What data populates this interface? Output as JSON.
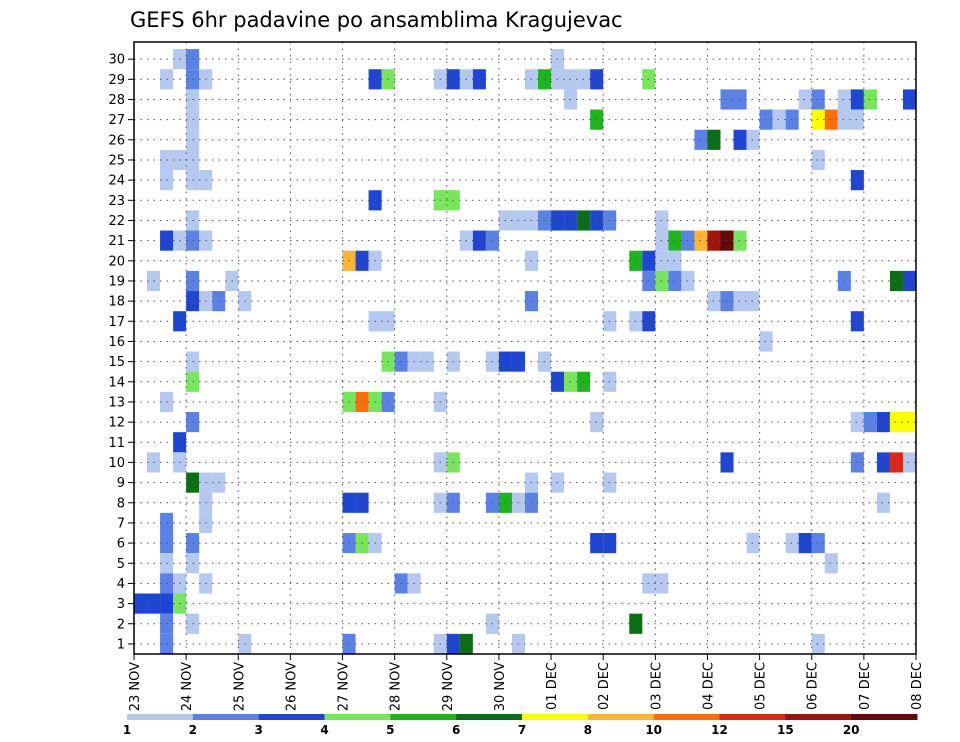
{
  "chart_data": {
    "type": "heatmap",
    "title": "GEFS 6hr padavine po ansamblima Kragujevac",
    "y_ticks": [
      "1",
      "2",
      "3",
      "4",
      "5",
      "6",
      "7",
      "8",
      "9",
      "10",
      "11",
      "12",
      "13",
      "14",
      "15",
      "16",
      "17",
      "18",
      "19",
      "20",
      "21",
      "22",
      "23",
      "24",
      "25",
      "26",
      "27",
      "28",
      "29",
      "30"
    ],
    "x_ticks": [
      "23 NOV",
      "24 NOV",
      "25 NOV",
      "26 NOV",
      "27 NOV",
      "28 NOV",
      "29 NOV",
      "30 NOV",
      "01 DEC",
      "02 DEC",
      "03 DEC",
      "04 DEC",
      "05 DEC",
      "06 DEC",
      "07 DEC",
      "08 DEC"
    ],
    "x_grid": "dotted",
    "y_grid": "dotted",
    "legend": {
      "position": "bottom",
      "colors": [
        "#b4c8f0",
        "#5a82e6",
        "#1e46d2",
        "#78e65a",
        "#1eb41e",
        "#0a6e14",
        "#ffff00",
        "#ffb432",
        "#ff6e0a",
        "#dc2814",
        "#a0140a",
        "#640a0a"
      ],
      "labels": [
        "1",
        "2",
        "3",
        "4",
        "5",
        "6",
        "7",
        "8",
        "10",
        "12",
        "15",
        "20"
      ]
    },
    "cells": [
      [
        "23 NOV 18Z",
        30,
        1
      ],
      [
        "24 NOV 00Z",
        30,
        2
      ],
      [
        "23 NOV 12Z",
        29,
        1
      ],
      [
        "24 NOV 00Z",
        29,
        2
      ],
      [
        "24 NOV 06Z",
        29,
        1
      ],
      [
        "27 NOV 12Z",
        29,
        3
      ],
      [
        "27 NOV 18Z",
        29,
        4
      ],
      [
        "28 NOV 18Z",
        29,
        1
      ],
      [
        "29 NOV 00Z",
        29,
        3
      ],
      [
        "29 NOV 06Z",
        29,
        1
      ],
      [
        "29 NOV 12Z",
        29,
        3
      ],
      [
        "30 NOV 12Z",
        29,
        1
      ],
      [
        "30 NOV 18Z",
        29,
        5
      ],
      [
        "01 DEC 00Z",
        29,
        1
      ],
      [
        "01 DEC 06Z",
        29,
        1
      ],
      [
        "01 DEC 12Z",
        29,
        1
      ],
      [
        "01 DEC 18Z",
        29,
        3
      ],
      [
        "02 DEC 18Z",
        29,
        4
      ],
      [
        "01 DEC 00Z",
        30,
        1
      ],
      [
        "24 NOV 00Z",
        28,
        1
      ],
      [
        "01 DEC 06Z",
        28,
        1
      ],
      [
        "04 DEC 06Z",
        28,
        2
      ],
      [
        "04 DEC 12Z",
        28,
        2
      ],
      [
        "05 DEC 18Z",
        28,
        1
      ],
      [
        "06 DEC 00Z",
        28,
        2
      ],
      [
        "06 DEC 12Z",
        28,
        1
      ],
      [
        "06 DEC 18Z",
        28,
        3
      ],
      [
        "07 DEC 00Z",
        28,
        4
      ],
      [
        "07 DEC 18Z",
        28,
        3
      ],
      [
        "24 NOV 00Z",
        27,
        1
      ],
      [
        "01 DEC 18Z",
        27,
        5
      ],
      [
        "05 DEC 00Z",
        27,
        2
      ],
      [
        "05 DEC 06Z",
        27,
        1
      ],
      [
        "05 DEC 12Z",
        27,
        2
      ],
      [
        "06 DEC 00Z",
        27,
        7
      ],
      [
        "06 DEC 06Z",
        27,
        9
      ],
      [
        "06 DEC 12Z",
        27,
        1
      ],
      [
        "06 DEC 18Z",
        27,
        1
      ],
      [
        "24 NOV 00Z",
        26,
        1
      ],
      [
        "03 DEC 18Z",
        26,
        2
      ],
      [
        "04 DEC 00Z",
        26,
        6
      ],
      [
        "04 DEC 12Z",
        26,
        3
      ],
      [
        "04 DEC 18Z",
        26,
        1
      ],
      [
        "23 NOV 12Z",
        25,
        1
      ],
      [
        "23 NOV 18Z",
        25,
        1
      ],
      [
        "24 NOV 00Z",
        25,
        1
      ],
      [
        "06 DEC 00Z",
        25,
        1
      ],
      [
        "23 NOV 12Z",
        24,
        1
      ],
      [
        "24 NOV 00Z",
        24,
        1
      ],
      [
        "24 NOV 06Z",
        24,
        1
      ],
      [
        "06 DEC 18Z",
        24,
        3
      ],
      [
        "27 NOV 12Z",
        23,
        3
      ],
      [
        "28 NOV 18Z",
        23,
        4
      ],
      [
        "29 NOV 00Z",
        23,
        4
      ],
      [
        "24 NOV 00Z",
        22,
        1
      ],
      [
        "30 NOV 00Z",
        22,
        1
      ],
      [
        "30 NOV 06Z",
        22,
        1
      ],
      [
        "30 NOV 12Z",
        22,
        1
      ],
      [
        "30 NOV 18Z",
        22,
        2
      ],
      [
        "01 DEC 00Z",
        22,
        3
      ],
      [
        "01 DEC 06Z",
        22,
        3
      ],
      [
        "01 DEC 12Z",
        22,
        6
      ],
      [
        "01 DEC 18Z",
        22,
        3
      ],
      [
        "02 DEC 00Z",
        22,
        2
      ],
      [
        "03 DEC 00Z",
        22,
        1
      ],
      [
        "23 NOV 12Z",
        21,
        3
      ],
      [
        "23 NOV 18Z",
        21,
        1
      ],
      [
        "24 NOV 00Z",
        21,
        2
      ],
      [
        "24 NOV 06Z",
        21,
        1
      ],
      [
        "29 NOV 06Z",
        21,
        1
      ],
      [
        "29 NOV 12Z",
        21,
        3
      ],
      [
        "29 NOV 18Z",
        21,
        2
      ],
      [
        "03 DEC 00Z",
        21,
        1
      ],
      [
        "03 DEC 06Z",
        21,
        5
      ],
      [
        "03 DEC 12Z",
        21,
        2
      ],
      [
        "03 DEC 18Z",
        21,
        8
      ],
      [
        "04 DEC 00Z",
        21,
        11
      ],
      [
        "04 DEC 06Z",
        21,
        12
      ],
      [
        "04 DEC 12Z",
        21,
        4
      ],
      [
        "27 NOV 00Z",
        20,
        8
      ],
      [
        "27 NOV 06Z",
        20,
        3
      ],
      [
        "27 NOV 12Z",
        20,
        1
      ],
      [
        "30 NOV 12Z",
        20,
        1
      ],
      [
        "02 DEC 12Z",
        20,
        5
      ],
      [
        "02 DEC 18Z",
        20,
        3
      ],
      [
        "03 DEC 00Z",
        20,
        1
      ],
      [
        "03 DEC 06Z",
        20,
        1
      ],
      [
        "23 NOV 06Z",
        19,
        1
      ],
      [
        "24 NOV 00Z",
        19,
        2
      ],
      [
        "24 NOV 18Z",
        19,
        1
      ],
      [
        "02 DEC 18Z",
        19,
        2
      ],
      [
        "03 DEC 00Z",
        19,
        4
      ],
      [
        "03 DEC 06Z",
        19,
        2
      ],
      [
        "03 DEC 12Z",
        19,
        1
      ],
      [
        "06 DEC 12Z",
        19,
        2
      ],
      [
        "07 DEC 12Z",
        19,
        6
      ],
      [
        "07 DEC 18Z",
        19,
        3
      ],
      [
        "24 NOV 00Z",
        18,
        3
      ],
      [
        "24 NOV 06Z",
        18,
        1
      ],
      [
        "24 NOV 12Z",
        18,
        2
      ],
      [
        "25 NOV 00Z",
        18,
        1
      ],
      [
        "30 NOV 12Z",
        18,
        2
      ],
      [
        "04 DEC 00Z",
        18,
        1
      ],
      [
        "04 DEC 06Z",
        18,
        2
      ],
      [
        "04 DEC 12Z",
        18,
        1
      ],
      [
        "04 DEC 18Z",
        18,
        1
      ],
      [
        "23 NOV 18Z",
        17,
        3
      ],
      [
        "27 NOV 12Z",
        17,
        1
      ],
      [
        "27 NOV 18Z",
        17,
        1
      ],
      [
        "02 DEC 00Z",
        17,
        1
      ],
      [
        "02 DEC 12Z",
        17,
        1
      ],
      [
        "02 DEC 18Z",
        17,
        3
      ],
      [
        "06 DEC 18Z",
        17,
        3
      ],
      [
        "05 DEC 00Z",
        16,
        1
      ],
      [
        "24 NOV 00Z",
        15,
        1
      ],
      [
        "27 NOV 18Z",
        15,
        4
      ],
      [
        "28 NOV 00Z",
        15,
        2
      ],
      [
        "28 NOV 06Z",
        15,
        1
      ],
      [
        "28 NOV 12Z",
        15,
        1
      ],
      [
        "29 NOV 00Z",
        15,
        1
      ],
      [
        "29 NOV 18Z",
        15,
        1
      ],
      [
        "30 NOV 00Z",
        15,
        3
      ],
      [
        "30 NOV 06Z",
        15,
        3
      ],
      [
        "30 NOV 18Z",
        15,
        1
      ],
      [
        "24 NOV 00Z",
        14,
        4
      ],
      [
        "01 DEC 00Z",
        14,
        3
      ],
      [
        "01 DEC 06Z",
        14,
        4
      ],
      [
        "01 DEC 12Z",
        14,
        5
      ],
      [
        "02 DEC 00Z",
        14,
        1
      ],
      [
        "23 NOV 12Z",
        13,
        1
      ],
      [
        "27 NOV 00Z",
        13,
        4
      ],
      [
        "27 NOV 06Z",
        13,
        9
      ],
      [
        "27 NOV 12Z",
        13,
        4
      ],
      [
        "27 NOV 18Z",
        13,
        2
      ],
      [
        "28 NOV 18Z",
        13,
        1
      ],
      [
        "24 NOV 00Z",
        12,
        2
      ],
      [
        "01 DEC 18Z",
        12,
        1
      ],
      [
        "06 DEC 18Z",
        12,
        1
      ],
      [
        "07 DEC 00Z",
        12,
        2
      ],
      [
        "07 DEC 06Z",
        12,
        3
      ],
      [
        "07 DEC 12Z",
        12,
        7
      ],
      [
        "07 DEC 18Z",
        12,
        7
      ],
      [
        "23 NOV 18Z",
        11,
        3
      ],
      [
        "23 NOV 06Z",
        10,
        1
      ],
      [
        "23 NOV 18Z",
        10,
        1
      ],
      [
        "28 NOV 18Z",
        10,
        1
      ],
      [
        "29 NOV 00Z",
        10,
        4
      ],
      [
        "04 DEC 06Z",
        10,
        3
      ],
      [
        "06 DEC 18Z",
        10,
        2
      ],
      [
        "07 DEC 06Z",
        10,
        3
      ],
      [
        "07 DEC 12Z",
        10,
        10
      ],
      [
        "07 DEC 18Z",
        10,
        1
      ],
      [
        "24 NOV 00Z",
        9,
        6
      ],
      [
        "24 NOV 06Z",
        9,
        1
      ],
      [
        "24 NOV 12Z",
        9,
        1
      ],
      [
        "30 NOV 12Z",
        9,
        1
      ],
      [
        "01 DEC 00Z",
        9,
        1
      ],
      [
        "02 DEC 00Z",
        9,
        1
      ],
      [
        "24 NOV 06Z",
        8,
        1
      ],
      [
        "27 NOV 00Z",
        8,
        3
      ],
      [
        "27 NOV 06Z",
        8,
        3
      ],
      [
        "28 NOV 18Z",
        8,
        1
      ],
      [
        "29 NOV 00Z",
        8,
        2
      ],
      [
        "29 NOV 18Z",
        8,
        2
      ],
      [
        "30 NOV 00Z",
        8,
        5
      ],
      [
        "30 NOV 06Z",
        8,
        1
      ],
      [
        "30 NOV 12Z",
        8,
        2
      ],
      [
        "07 DEC 06Z",
        8,
        1
      ],
      [
        "23 NOV 12Z",
        7,
        2
      ],
      [
        "24 NOV 06Z",
        7,
        1
      ],
      [
        "23 NOV 12Z",
        6,
        2
      ],
      [
        "24 NOV 00Z",
        6,
        2
      ],
      [
        "27 NOV 00Z",
        6,
        2
      ],
      [
        "27 NOV 06Z",
        6,
        4
      ],
      [
        "27 NOV 12Z",
        6,
        1
      ],
      [
        "01 DEC 18Z",
        6,
        3
      ],
      [
        "02 DEC 00Z",
        6,
        3
      ],
      [
        "04 DEC 18Z",
        6,
        1
      ],
      [
        "05 DEC 12Z",
        6,
        1
      ],
      [
        "05 DEC 18Z",
        6,
        3
      ],
      [
        "06 DEC 00Z",
        6,
        2
      ],
      [
        "23 NOV 12Z",
        5,
        1
      ],
      [
        "24 NOV 00Z",
        5,
        1
      ],
      [
        "06 DEC 06Z",
        5,
        1
      ],
      [
        "23 NOV 12Z",
        4,
        2
      ],
      [
        "23 NOV 18Z",
        4,
        1
      ],
      [
        "24 NOV 06Z",
        4,
        1
      ],
      [
        "28 NOV 00Z",
        4,
        2
      ],
      [
        "28 NOV 06Z",
        4,
        1
      ],
      [
        "02 DEC 18Z",
        4,
        1
      ],
      [
        "03 DEC 00Z",
        4,
        1
      ],
      [
        "23 NOV 00Z",
        3,
        3
      ],
      [
        "23 NOV 06Z",
        3,
        3
      ],
      [
        "23 NOV 12Z",
        3,
        3
      ],
      [
        "23 NOV 18Z",
        3,
        4
      ],
      [
        "23 NOV 12Z",
        2,
        2
      ],
      [
        "24 NOV 00Z",
        2,
        1
      ],
      [
        "29 NOV 18Z",
        2,
        1
      ],
      [
        "02 DEC 12Z",
        2,
        6
      ],
      [
        "23 NOV 12Z",
        1,
        2
      ],
      [
        "25 NOV 00Z",
        1,
        1
      ],
      [
        "27 NOV 00Z",
        1,
        2
      ],
      [
        "28 NOV 18Z",
        1,
        1
      ],
      [
        "29 NOV 00Z",
        1,
        3
      ],
      [
        "29 NOV 06Z",
        1,
        6
      ],
      [
        "30 NOV 06Z",
        1,
        1
      ],
      [
        "06 DEC 00Z",
        1,
        1
      ]
    ]
  }
}
